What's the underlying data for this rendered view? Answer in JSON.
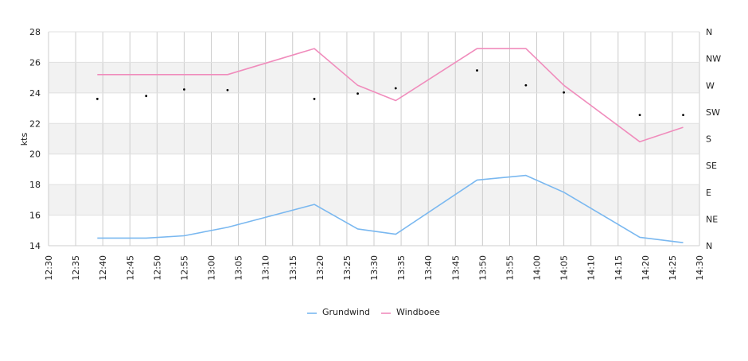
{
  "chart_data": {
    "type": "line",
    "ylabel": "kts",
    "ylim": [
      14,
      28
    ],
    "yticks": [
      "14",
      "16",
      "18",
      "20",
      "22",
      "24",
      "26",
      "28"
    ],
    "xlim": [
      "12:30",
      "14:30"
    ],
    "xticks": [
      "12:30",
      "12:35",
      "12:40",
      "12:45",
      "12:50",
      "12:55",
      "13:00",
      "13:05",
      "13:10",
      "13:15",
      "13:20",
      "13:25",
      "13:30",
      "13:35",
      "13:40",
      "13:45",
      "13:50",
      "13:55",
      "14:00",
      "14:05",
      "14:10",
      "14:15",
      "14:20",
      "14:25",
      "14:30"
    ],
    "direction_axis": {
      "labels": [
        "N",
        "NE",
        "E",
        "SE",
        "S",
        "SW",
        "W",
        "NW",
        "N"
      ],
      "range_degrees": [
        0,
        360
      ]
    },
    "band_color": "#f2f2f2",
    "grid": true,
    "legend_position": "bottom",
    "series": [
      {
        "name": "Grundwind",
        "color": "#7ab8f0",
        "x": [
          "12:39",
          "12:48",
          "12:55",
          "13:03",
          "13:19",
          "13:27",
          "13:34",
          "13:49",
          "13:58",
          "14:05",
          "14:19",
          "14:27"
        ],
        "values": [
          14.5,
          14.5,
          14.65,
          15.2,
          16.7,
          15.1,
          14.75,
          18.3,
          18.6,
          17.5,
          14.55,
          14.2
        ]
      },
      {
        "name": "Windboee",
        "color": "#f08cbc",
        "x": [
          "12:39",
          "12:48",
          "12:55",
          "13:03",
          "13:19",
          "13:27",
          "13:34",
          "13:49",
          "13:58",
          "14:05",
          "14:19",
          "14:27"
        ],
        "values": [
          25.2,
          25.2,
          25.2,
          25.2,
          26.9,
          24.5,
          23.5,
          26.9,
          26.9,
          24.5,
          20.8,
          21.75
        ]
      }
    ],
    "direction_points": {
      "x": [
        "12:39",
        "12:48",
        "12:55",
        "13:03",
        "13:19",
        "13:27",
        "13:34",
        "13:49",
        "13:58",
        "14:05",
        "14:19",
        "14:27"
      ],
      "values": [
        247,
        252,
        263,
        262,
        247,
        256,
        265,
        295,
        270,
        258,
        220,
        220
      ]
    }
  }
}
